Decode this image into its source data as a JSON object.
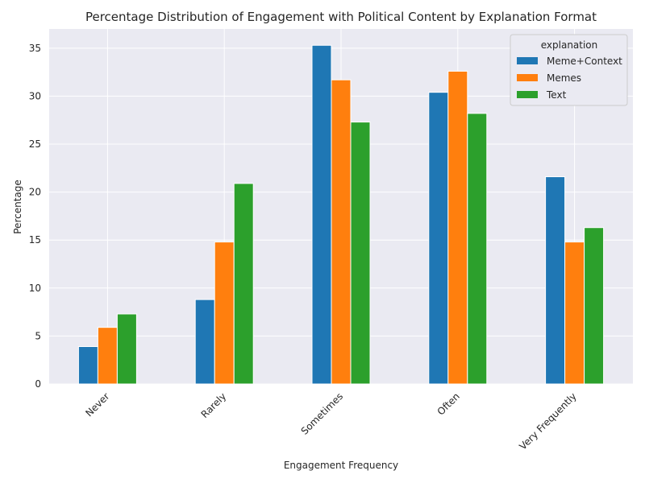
{
  "chart_data": {
    "type": "bar",
    "title": "Percentage Distribution of Engagement with Political Content by Explanation Format",
    "xlabel": "Engagement Frequency",
    "ylabel": "Percentage",
    "categories": [
      "Never",
      "Rarely",
      "Sometimes",
      "Often",
      "Very Frequently"
    ],
    "series": [
      {
        "name": "Meme+Context",
        "color": "#1f77b4",
        "values": [
          3.9,
          8.8,
          35.3,
          30.4,
          21.6
        ]
      },
      {
        "name": "Memes",
        "color": "#ff7f0e",
        "values": [
          5.9,
          14.8,
          31.7,
          32.6,
          14.8
        ]
      },
      {
        "name": "Text",
        "color": "#2ca02c",
        "values": [
          7.3,
          20.9,
          27.3,
          28.2,
          16.3
        ]
      }
    ],
    "ylim": [
      0,
      37
    ],
    "yticks": [
      0,
      5,
      10,
      15,
      20,
      25,
      30,
      35
    ],
    "grid": true,
    "legend": {
      "title": "explanation",
      "position": "top-right"
    }
  }
}
